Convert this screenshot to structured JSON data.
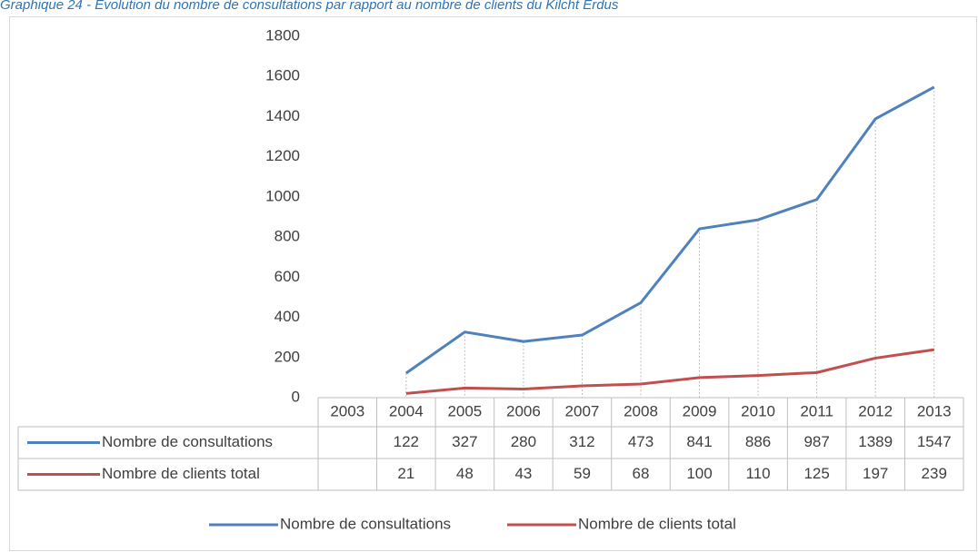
{
  "chart_data": {
    "type": "line",
    "title": "Graphique 24 - Evolution du nombre de consultations par rapport au nombre de clients du Kilcht Erdus",
    "categories": [
      "2003",
      "2004",
      "2005",
      "2006",
      "2007",
      "2008",
      "2009",
      "2010",
      "2011",
      "2012",
      "2013"
    ],
    "series": [
      {
        "name": "Nombre de consultations",
        "color": "#4f81bd",
        "values": [
          null,
          122,
          327,
          280,
          312,
          473,
          841,
          886,
          987,
          1389,
          1547
        ]
      },
      {
        "name": "Nombre de clients total",
        "color": "#c0504d",
        "values": [
          null,
          21,
          48,
          43,
          59,
          68,
          100,
          110,
          125,
          197,
          239
        ]
      }
    ],
    "ylim": [
      0,
      1800
    ],
    "yticks": [
      0,
      200,
      400,
      600,
      800,
      1000,
      1200,
      1400,
      1600,
      1800
    ],
    "drop_lines": true,
    "legend": "bottom"
  }
}
